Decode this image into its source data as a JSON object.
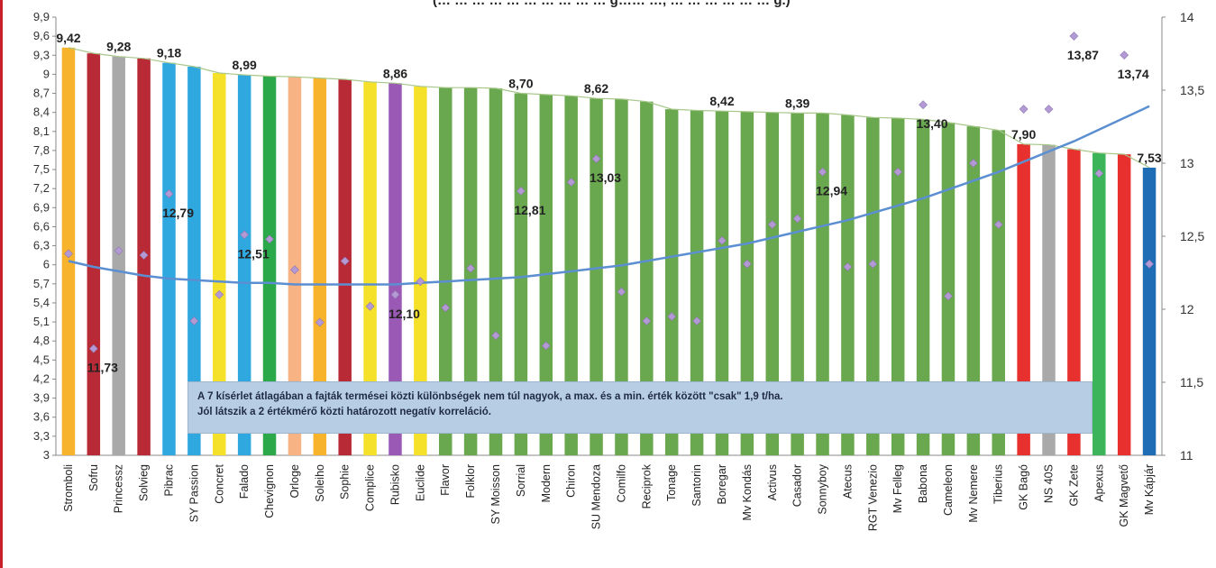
{
  "chart_data": {
    "type": "bar",
    "title": "(… … … … … … … … … … g…… …, … … … … … … g.)",
    "categories": [
      "Stromboli",
      "Sofru",
      "Princessz",
      "Solvieg",
      "Pibrac",
      "SY Passion",
      "Concret",
      "Falado",
      "Chevignon",
      "Orloge",
      "Soleiho",
      "Sophie",
      "Complice",
      "Rubisko",
      "Euclide",
      "Flavor",
      "Folklor",
      "SY Moisson",
      "Sorrial",
      "Modern",
      "Chiron",
      "SU Mendoza",
      "Comilfo",
      "Reciprok",
      "Tonage",
      "Santorin",
      "Boregar",
      "Mv Kondás",
      "Activus",
      "Casador",
      "Sonnyboy",
      "Atecus",
      "RGT Venezio",
      "Mv Felleg",
      "Babona",
      "Cameleon",
      "Mv Nemere",
      "Tiberius",
      "GK Bagó",
      "NS 40S",
      "GK Zete",
      "Apexus",
      "GK Magvető",
      "Mv Kápjár"
    ],
    "values": [
      9.42,
      9.33,
      9.28,
      9.25,
      9.18,
      9.12,
      9.02,
      8.99,
      8.97,
      8.96,
      8.94,
      8.92,
      8.88,
      8.86,
      8.81,
      8.79,
      8.79,
      8.78,
      8.7,
      8.68,
      8.66,
      8.62,
      8.61,
      8.57,
      8.45,
      8.43,
      8.42,
      8.41,
      8.4,
      8.39,
      8.39,
      8.36,
      8.32,
      8.31,
      8.29,
      8.24,
      8.18,
      8.12,
      7.9,
      7.89,
      7.82,
      7.76,
      7.74,
      7.53
    ],
    "bar_colors": [
      "#f7b32b",
      "#b82a35",
      "#a9a9a9",
      "#b82a35",
      "#2fa8e0",
      "#2fa8e0",
      "#f5e02a",
      "#2fa8e0",
      "#2aa84a",
      "#f7b383",
      "#f7b32b",
      "#b82a35",
      "#f5e02a",
      "#9b59b6",
      "#f5e02a",
      "#6aa84f",
      "#6aa84f",
      "#6aa84f",
      "#6aa84f",
      "#6aa84f",
      "#6aa84f",
      "#6aa84f",
      "#6aa84f",
      "#6aa84f",
      "#6aa84f",
      "#6aa84f",
      "#6aa84f",
      "#6aa84f",
      "#6aa84f",
      "#6aa84f",
      "#6aa84f",
      "#6aa84f",
      "#6aa84f",
      "#6aa84f",
      "#6aa84f",
      "#6aa84f",
      "#6aa84f",
      "#6aa84f",
      "#e8312f",
      "#a9a9a9",
      "#e8312f",
      "#3cb55a",
      "#e8312f",
      "#1f6db5"
    ],
    "value_labels": {
      "0": "9,42",
      "2": "9,28",
      "4": "9,18",
      "7": "8,99",
      "13": "8,86",
      "18": "8,70",
      "21": "8,62",
      "26": "8,42",
      "29": "8,39",
      "38": "7,90",
      "43": "7,53"
    },
    "secondary_series": {
      "marker": "diamond",
      "color": "#b49ad4",
      "values": [
        12.38,
        11.73,
        12.4,
        12.37,
        12.79,
        11.92,
        12.1,
        12.51,
        12.48,
        12.27,
        11.91,
        12.33,
        12.02,
        12.1,
        12.19,
        12.01,
        12.28,
        11.82,
        12.81,
        11.75,
        12.87,
        13.03,
        12.12,
        11.92,
        11.95,
        11.92,
        12.47,
        12.31,
        12.58,
        12.62,
        12.94,
        12.29,
        12.31,
        12.94,
        13.4,
        12.09,
        13.0,
        12.58,
        13.37,
        13.37,
        13.87,
        12.93,
        13.74,
        12.31
      ],
      "labels": {
        "1": "11,73",
        "4": "12,79",
        "7": "12,51",
        "13": "12,10",
        "18": "12,81",
        "21": "13,03",
        "30": "12,94",
        "34": "13,40",
        "40": "13,87",
        "42": "13,74"
      }
    },
    "trend_secondary": [
      12.33,
      12.29,
      12.26,
      12.23,
      12.21,
      12.2,
      12.19,
      12.18,
      12.18,
      12.17,
      12.17,
      12.17,
      12.17,
      12.17,
      12.18,
      12.19,
      12.2,
      12.21,
      12.22,
      12.24,
      12.26,
      12.28,
      12.3,
      12.33,
      12.36,
      12.39,
      12.42,
      12.45,
      12.49,
      12.53,
      12.57,
      12.61,
      12.66,
      12.71,
      12.76,
      12.82,
      12.88,
      12.94,
      13.01,
      13.08,
      13.15,
      13.23,
      13.31,
      13.39
    ],
    "yticks": [
      "3",
      "3,3",
      "3,6",
      "3,9",
      "4,2",
      "4,5",
      "4,8",
      "5,1",
      "5,4",
      "5,7",
      "6",
      "6,3",
      "6,6",
      "6,9",
      "7,2",
      "7,5",
      "7,8",
      "8,1",
      "8,4",
      "8,7",
      "9",
      "9,3",
      "9,6",
      "9,9"
    ],
    "y2ticks": [
      "11",
      "11,5",
      "12",
      "12,5",
      "13",
      "13,5",
      "14"
    ],
    "ylim": [
      3,
      9.9
    ],
    "y2lim": [
      11,
      14
    ],
    "annotation": [
      "A 7 kísérlet átlagában a fajták termései közti különbségek nem túl nagyok, a max. és a min. érték között \"csak\" 1,9 t/ha.",
      "Jól látszik a 2 értékmérő közti  határozott negatív korreláció."
    ]
  }
}
